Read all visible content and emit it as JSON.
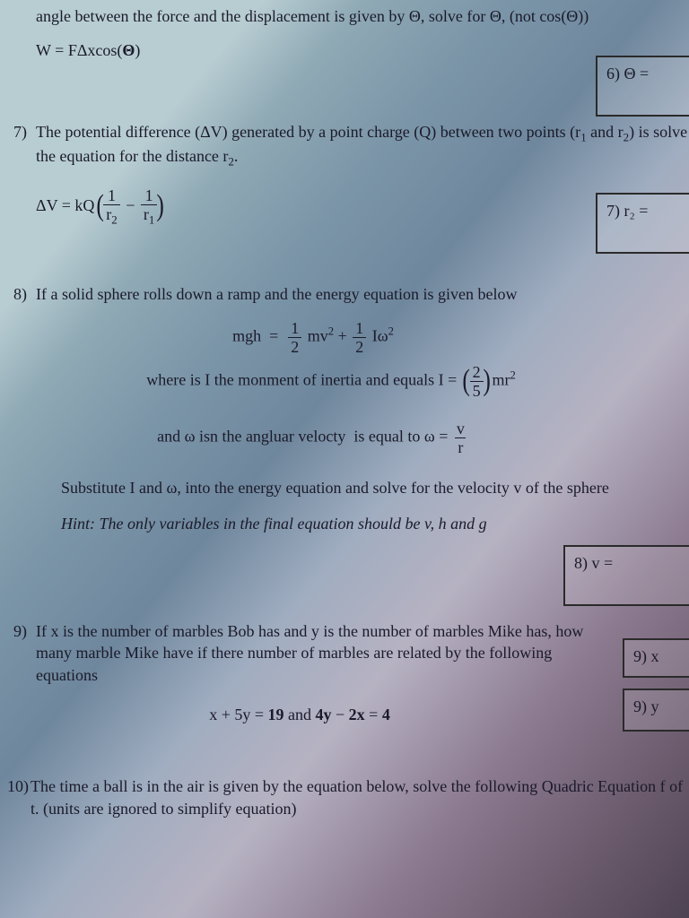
{
  "q6": {
    "intro": "angle between the force and the displacement is given by Θ, solve for Θ, (not cos(Θ))",
    "equation_html": "W = FΔxcos(<span class='bold'>Θ</span>)",
    "answer_label": "6) Θ ="
  },
  "q7": {
    "number": "7)",
    "text": "The potential difference (ΔV) generated by a point charge (Q) between two points (r<sub>1</sub> and r<sub>2</sub>) is solve the equation for the distance r<sub>2</sub>.",
    "equation_html": "ΔV = kQ <span class='paren-big'>(</span><span class='frac'><span class='n'>1</span><span class='d'>r<sub>2</sub></span></span> − <span class='frac'><span class='n'>1</span><span class='d'>r<sub>1</sub></span></span><span class='paren-big'>)</span>",
    "answer_label": "7) r₂ ="
  },
  "q8": {
    "number": "8)",
    "text": "If a solid sphere rolls down a ramp and the energy equation is given below",
    "eq1_html": "mgh &nbsp;=&nbsp; <span class='frac'><span class='n'>1</span><span class='d'>2</span></span> mv<sup>2</sup> + <span class='frac'><span class='n'>1</span><span class='d'>2</span></span> Iω<sup>2</sup>",
    "eq2_html": "where is I the monment of inertia and equals I = &nbsp;<span class='paren-big'>(</span><span class='frac'><span class='n'>2</span><span class='d'>5</span></span><span class='paren-big'>)</span> mr<sup>2</sup>",
    "eq3_html": "and ω isn the angluar velocty&nbsp; is equal to ω = <span class='frac'><span class='n'>v</span><span class='d'>r</span></span>",
    "line4": "Substitute I and ω, into the energy equation and solve for the velocity v of the sphere",
    "hint": "Hint: The only variables in the final equation should be v, h and g",
    "answer_label": "8) v ="
  },
  "q9": {
    "number": "9)",
    "text": "If x is the number of marbles Bob has and y is the number of marbles Mike has, how many marble Mike have if there number of marbles are related by the following equations",
    "equation_html": "x + 5y = <span class='bold'>19</span> and <span class='bold'>4y</span> − <span class='bold'>2x</span> = <span class='bold'>4</span>",
    "answer_x": "9) x",
    "answer_y": "9) y"
  },
  "q10": {
    "number": "10)",
    "text": "The time a ball is in the air is given by the equation below, solve the following Quadric Equation f of t.  (units are ignored to simplify equation)"
  }
}
